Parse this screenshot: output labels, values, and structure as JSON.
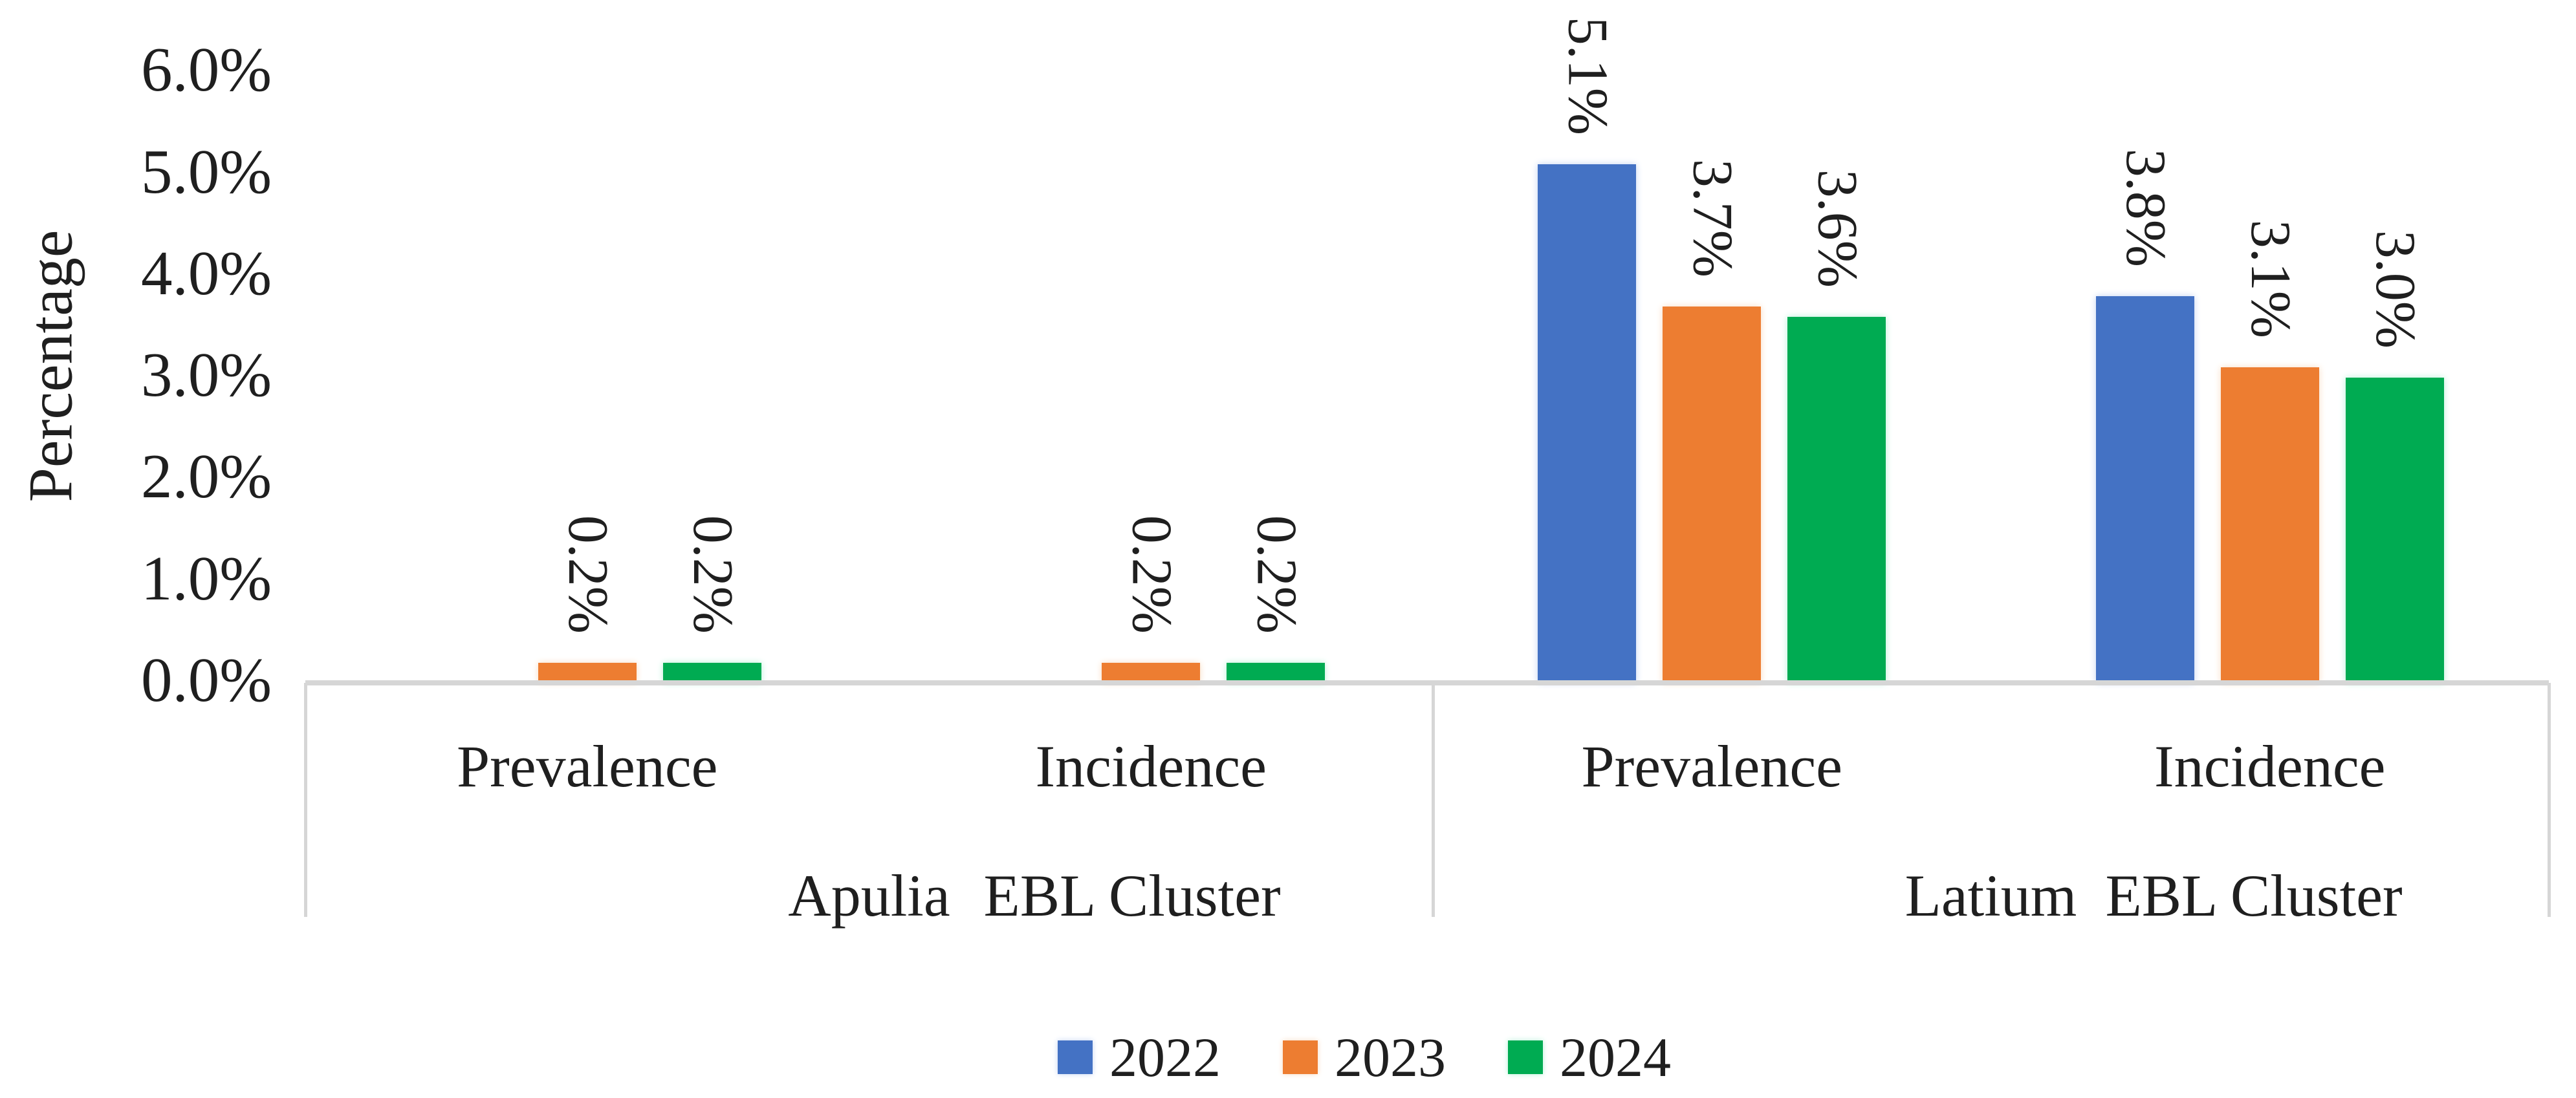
{
  "figure": {
    "background": "#ffffff",
    "text_color": "#1f1f1f",
    "axis_line_color": "#d6d6d6"
  },
  "chart_data": {
    "type": "bar",
    "title": "",
    "xlabel": "",
    "ylabel": "Percentage",
    "ylim": [
      0,
      6
    ],
    "y_tick_step": 1,
    "y_ticks": [
      "0.0%",
      "1.0%",
      "2.0%",
      "3.0%",
      "4.0%",
      "5.0%",
      "6.0%"
    ],
    "grid": false,
    "legend_position": "bottom",
    "categories": [
      "Prevalence",
      "Incidence",
      "Prevalence",
      "Incidence"
    ],
    "cluster_labels": [
      {
        "region": "Apulia",
        "suffix": "EBL Cluster"
      },
      {
        "region": "Latium",
        "suffix": "EBL Cluster"
      }
    ],
    "series": [
      {
        "name": "2022",
        "color": "#4472C4",
        "glow": "#c3d3f2",
        "values": [
          0.0,
          0.0,
          5.1,
          3.8
        ],
        "labels": [
          "",
          "",
          "5.1%",
          "3.8%"
        ]
      },
      {
        "name": "2023",
        "color": "#ED7D31",
        "glow": "#f8dcc2",
        "values": [
          0.2,
          0.2,
          3.7,
          3.1
        ],
        "labels": [
          "0.2%",
          "0.2%",
          "3.7%",
          "3.1%"
        ]
      },
      {
        "name": "2024",
        "color": "#00AB52",
        "glow": "#b5efd7",
        "values": [
          0.2,
          0.2,
          3.6,
          3.0
        ],
        "labels": [
          "0.2%",
          "0.2%",
          "3.6%",
          "3.0%"
        ]
      }
    ]
  }
}
